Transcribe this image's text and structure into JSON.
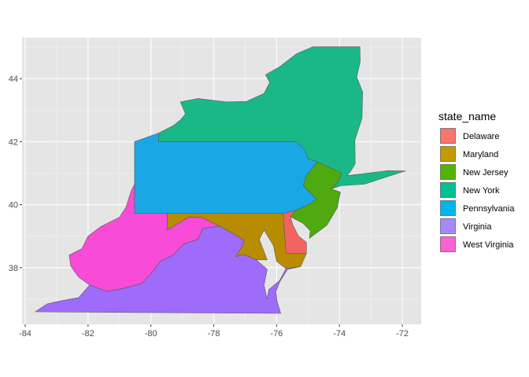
{
  "chart_data": {
    "type": "map",
    "title": "",
    "xlabel": "",
    "ylabel": "",
    "xlim": [
      -84.1,
      -71.4
    ],
    "ylim": [
      36.2,
      45.3
    ],
    "x_ticks": [
      -84,
      -82,
      -80,
      -78,
      -76,
      -74,
      -72
    ],
    "y_ticks": [
      38,
      40,
      42,
      44
    ],
    "x_tick_labels": [
      "-84",
      "-82",
      "-80",
      "-78",
      "-76",
      "-74",
      "-72"
    ],
    "y_tick_labels": [
      "38",
      "40",
      "42",
      "44"
    ],
    "grid": true,
    "panel_background": "#E5E5E5",
    "grid_color": "#FFFFFF",
    "legend": {
      "title": "state_name",
      "position": "right",
      "entries": [
        {
          "name": "Delaware",
          "color": "#F8766D"
        },
        {
          "name": "Maryland",
          "color": "#C49A00"
        },
        {
          "name": "New Jersey",
          "color": "#53B400"
        },
        {
          "name": "New York",
          "color": "#00C094"
        },
        {
          "name": "Pennsylvania",
          "color": "#00B6EB"
        },
        {
          "name": "Virginia",
          "color": "#A58AFF"
        },
        {
          "name": "West Virginia",
          "color": "#FB61D7"
        }
      ]
    },
    "regions": [
      {
        "name": "New York",
        "color": "#1AB887",
        "outline": [
          [
            -79.76,
            42.0
          ],
          [
            -79.76,
            42.27
          ],
          [
            -79.3,
            42.5
          ],
          [
            -79.05,
            42.7
          ],
          [
            -78.9,
            42.88
          ],
          [
            -79.06,
            43.26
          ],
          [
            -78.5,
            43.37
          ],
          [
            -77.6,
            43.26
          ],
          [
            -76.95,
            43.28
          ],
          [
            -76.4,
            43.53
          ],
          [
            -76.22,
            43.88
          ],
          [
            -76.35,
            44.12
          ],
          [
            -75.9,
            44.38
          ],
          [
            -75.35,
            44.8
          ],
          [
            -74.85,
            45.01
          ],
          [
            -73.35,
            45.01
          ],
          [
            -73.34,
            44.55
          ],
          [
            -73.45,
            44.05
          ],
          [
            -73.26,
            43.57
          ],
          [
            -73.28,
            42.75
          ],
          [
            -73.51,
            42.05
          ],
          [
            -73.5,
            41.3
          ],
          [
            -73.65,
            41.05
          ],
          [
            -73.77,
            40.92
          ],
          [
            -72.45,
            41.08
          ],
          [
            -71.9,
            41.07
          ],
          [
            -72.35,
            40.93
          ],
          [
            -73.2,
            40.65
          ],
          [
            -73.95,
            40.6
          ],
          [
            -74.26,
            40.5
          ],
          [
            -74.05,
            40.7
          ],
          [
            -73.92,
            41.0
          ],
          [
            -74.22,
            41.14
          ],
          [
            -74.7,
            41.36
          ],
          [
            -75.0,
            41.45
          ],
          [
            -75.1,
            41.74
          ],
          [
            -75.36,
            42.0
          ]
        ]
      },
      {
        "name": "Pennsylvania",
        "color": "#1AA7E6",
        "outline": [
          [
            -80.52,
            42.0
          ],
          [
            -80.52,
            39.72
          ],
          [
            -75.79,
            39.72
          ],
          [
            -75.4,
            39.81
          ],
          [
            -75.0,
            40.0
          ],
          [
            -74.73,
            40.17
          ],
          [
            -74.9,
            40.35
          ],
          [
            -75.15,
            40.6
          ],
          [
            -75.06,
            40.92
          ],
          [
            -74.7,
            41.36
          ],
          [
            -75.0,
            41.45
          ],
          [
            -75.1,
            41.74
          ],
          [
            -75.36,
            42.0
          ],
          [
            -79.76,
            42.0
          ],
          [
            -79.76,
            42.27
          ],
          [
            -80.52,
            42.0
          ]
        ]
      },
      {
        "name": "New Jersey",
        "color": "#4EAA0F",
        "outline": [
          [
            -74.7,
            41.36
          ],
          [
            -74.22,
            41.14
          ],
          [
            -73.92,
            41.0
          ],
          [
            -74.05,
            40.7
          ],
          [
            -74.26,
            40.5
          ],
          [
            -73.97,
            40.4
          ],
          [
            -74.07,
            39.9
          ],
          [
            -74.4,
            39.35
          ],
          [
            -74.96,
            38.93
          ],
          [
            -74.93,
            39.17
          ],
          [
            -75.15,
            39.4
          ],
          [
            -75.56,
            39.62
          ],
          [
            -75.4,
            39.81
          ],
          [
            -75.0,
            40.0
          ],
          [
            -74.73,
            40.17
          ],
          [
            -74.9,
            40.35
          ],
          [
            -75.15,
            40.6
          ],
          [
            -75.06,
            40.92
          ]
        ]
      },
      {
        "name": "Delaware",
        "color": "#F2645F",
        "outline": [
          [
            -75.79,
            39.72
          ],
          [
            -75.4,
            39.81
          ],
          [
            -75.56,
            39.62
          ],
          [
            -75.48,
            39.35
          ],
          [
            -75.3,
            39.0
          ],
          [
            -75.05,
            38.8
          ],
          [
            -75.05,
            38.45
          ],
          [
            -75.7,
            38.45
          ]
        ]
      },
      {
        "name": "Maryland",
        "color": "#B88C00",
        "outline": [
          [
            -79.48,
            39.72
          ],
          [
            -75.79,
            39.72
          ],
          [
            -75.7,
            38.45
          ],
          [
            -75.05,
            38.45
          ],
          [
            -75.24,
            38.03
          ],
          [
            -75.7,
            37.97
          ],
          [
            -76.0,
            38.2
          ],
          [
            -76.1,
            38.7
          ],
          [
            -76.4,
            39.2
          ],
          [
            -76.55,
            38.9
          ],
          [
            -76.3,
            38.25
          ],
          [
            -76.65,
            38.25
          ],
          [
            -77.05,
            38.42
          ],
          [
            -77.3,
            38.35
          ],
          [
            -77.08,
            38.7
          ],
          [
            -77.05,
            38.88
          ],
          [
            -77.45,
            39.12
          ],
          [
            -77.82,
            39.32
          ],
          [
            -78.4,
            39.6
          ],
          [
            -78.8,
            39.6
          ],
          [
            -79.48,
            39.2
          ]
        ]
      },
      {
        "name": "West Virginia",
        "color": "#F84BD8",
        "outline": [
          [
            -80.52,
            39.72
          ],
          [
            -79.48,
            39.72
          ],
          [
            -79.48,
            39.2
          ],
          [
            -78.8,
            39.6
          ],
          [
            -78.4,
            39.6
          ],
          [
            -77.82,
            39.32
          ],
          [
            -78.35,
            39.25
          ],
          [
            -78.5,
            38.9
          ],
          [
            -78.95,
            38.75
          ],
          [
            -79.3,
            38.4
          ],
          [
            -79.7,
            38.2
          ],
          [
            -80.0,
            37.8
          ],
          [
            -80.3,
            37.5
          ],
          [
            -80.85,
            37.35
          ],
          [
            -81.4,
            37.25
          ],
          [
            -81.95,
            37.45
          ],
          [
            -82.3,
            37.7
          ],
          [
            -82.55,
            38.05
          ],
          [
            -82.6,
            38.4
          ],
          [
            -82.2,
            38.6
          ],
          [
            -82.0,
            39.0
          ],
          [
            -81.6,
            39.3
          ],
          [
            -81.0,
            39.6
          ],
          [
            -80.8,
            39.9
          ],
          [
            -80.62,
            40.45
          ],
          [
            -80.52,
            40.64
          ]
        ]
      },
      {
        "name": "Virginia",
        "color": "#9F6BFB",
        "outline": [
          [
            -83.68,
            36.6
          ],
          [
            -75.87,
            36.55
          ],
          [
            -75.99,
            36.95
          ],
          [
            -76.02,
            37.25
          ],
          [
            -75.9,
            37.55
          ],
          [
            -75.65,
            37.95
          ],
          [
            -75.24,
            38.03
          ],
          [
            -75.7,
            37.97
          ],
          [
            -75.9,
            37.6
          ],
          [
            -76.25,
            37.3
          ],
          [
            -76.3,
            37.0
          ],
          [
            -76.4,
            37.45
          ],
          [
            -76.3,
            37.95
          ],
          [
            -76.65,
            38.25
          ],
          [
            -77.05,
            38.42
          ],
          [
            -77.3,
            38.35
          ],
          [
            -77.08,
            38.7
          ],
          [
            -77.05,
            38.88
          ],
          [
            -77.45,
            39.12
          ],
          [
            -77.82,
            39.32
          ],
          [
            -78.35,
            39.25
          ],
          [
            -78.5,
            38.9
          ],
          [
            -78.95,
            38.75
          ],
          [
            -79.3,
            38.4
          ],
          [
            -79.7,
            38.2
          ],
          [
            -80.0,
            37.8
          ],
          [
            -80.3,
            37.5
          ],
          [
            -80.85,
            37.35
          ],
          [
            -81.4,
            37.25
          ],
          [
            -81.95,
            37.45
          ],
          [
            -82.3,
            37.05
          ],
          [
            -82.85,
            36.95
          ],
          [
            -83.3,
            36.85
          ]
        ]
      }
    ]
  }
}
